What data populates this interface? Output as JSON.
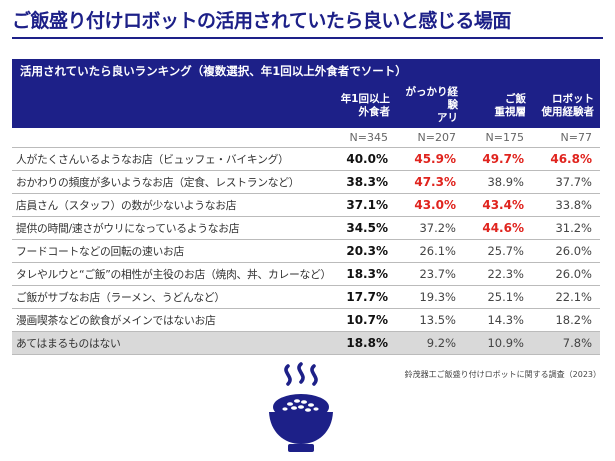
{
  "title": "ご飯盛り付けロボットの活用されていたら良いと感じる場面",
  "subhead": "活用されていたら良いランキング（複数選択、年1回以上外食者でソート）",
  "columns": [
    {
      "label": "年1回以上\n外食者",
      "n": "N=345"
    },
    {
      "label": "がっかり経験\nアリ",
      "n": "N=207"
    },
    {
      "label": "ご飯\n重視層",
      "n": "N=175"
    },
    {
      "label": "ロボット\n使用経験者",
      "n": "N=77"
    }
  ],
  "rows": [
    {
      "label": "人がたくさんいるようなお店（ビュッフェ・バイキング）",
      "values": [
        "40.0%",
        "45.9%",
        "49.7%",
        "46.8%"
      ],
      "highlight": [
        false,
        true,
        true,
        true
      ],
      "shaded": false
    },
    {
      "label": "おかわりの頻度が多いようなお店（定食、レストランなど）",
      "values": [
        "38.3%",
        "47.3%",
        "38.9%",
        "37.7%"
      ],
      "highlight": [
        false,
        true,
        false,
        false
      ],
      "shaded": false
    },
    {
      "label": "店員さん（スタッフ）の数が少ないようなお店",
      "values": [
        "37.1%",
        "43.0%",
        "43.4%",
        "33.8%"
      ],
      "highlight": [
        false,
        true,
        true,
        false
      ],
      "shaded": false
    },
    {
      "label": "提供の時間/速さがウリになっているようなお店",
      "values": [
        "34.5%",
        "37.2%",
        "44.6%",
        "31.2%"
      ],
      "highlight": [
        false,
        false,
        true,
        false
      ],
      "shaded": false
    },
    {
      "label": "フードコートなどの回転の速いお店",
      "values": [
        "20.3%",
        "26.1%",
        "25.7%",
        "26.0%"
      ],
      "highlight": [
        false,
        false,
        false,
        false
      ],
      "shaded": false
    },
    {
      "label": "タレやルウと“ご飯”の相性が主役のお店（焼肉、丼、カレーなど）",
      "values": [
        "18.3%",
        "23.7%",
        "22.3%",
        "26.0%"
      ],
      "highlight": [
        false,
        false,
        false,
        false
      ],
      "shaded": false
    },
    {
      "label": "ご飯がサブなお店（ラーメン、うどんなど）",
      "values": [
        "17.7%",
        "19.3%",
        "25.1%",
        "22.1%"
      ],
      "highlight": [
        false,
        false,
        false,
        false
      ],
      "shaded": false
    },
    {
      "label": "漫画喫茶などの飲食がメインではないお店",
      "values": [
        "10.7%",
        "13.5%",
        "14.3%",
        "18.2%"
      ],
      "highlight": [
        false,
        false,
        false,
        false
      ],
      "shaded": false
    },
    {
      "label": "あてはまるものはない",
      "values": [
        "18.8%",
        "9.2%",
        "10.9%",
        "7.8%"
      ],
      "highlight": [
        false,
        false,
        false,
        false
      ],
      "shaded": true
    }
  ],
  "source": "鈴茂器工ご飯盛り付けロボットに関する調査（2023）",
  "icons": {
    "bowl": "rice-bowl-icon"
  },
  "colors": {
    "navy": "#1d2088",
    "highlight": "#e0241e",
    "shade": "#d9d9d9"
  },
  "chart_data": {
    "type": "table",
    "title": "ご飯盛り付けロボットの活用されていたら良いと感じる場面",
    "subtitle": "活用されていたら良いランキング（複数選択、年1回以上外食者でソート）",
    "categories": [
      "人がたくさんいるようなお店（ビュッフェ・バイキング）",
      "おかわりの頻度が多いようなお店（定食、レストランなど）",
      "店員さん（スタッフ）の数が少ないようなお店",
      "提供の時間/速さがウリになっているようなお店",
      "フードコートなどの回転の速いお店",
      "タレやルウと“ご飯”の相性が主役のお店（焼肉、丼、カレーなど）",
      "ご飯がサブなお店（ラーメン、うどんなど）",
      "漫画喫茶などの飲食がメインではないお店",
      "あてはまるものはない"
    ],
    "series": [
      {
        "name": "年1回以上外食者",
        "n": 345,
        "values": [
          40.0,
          38.3,
          37.1,
          34.5,
          20.3,
          18.3,
          17.7,
          10.7,
          18.8
        ]
      },
      {
        "name": "がっかり経験アリ",
        "n": 207,
        "values": [
          45.9,
          47.3,
          43.0,
          37.2,
          26.1,
          23.7,
          19.3,
          13.5,
          9.2
        ]
      },
      {
        "name": "ご飯重視層",
        "n": 175,
        "values": [
          49.7,
          38.9,
          43.4,
          44.6,
          25.7,
          22.3,
          25.1,
          14.3,
          10.9
        ]
      },
      {
        "name": "ロボット使用経験者",
        "n": 77,
        "values": [
          46.8,
          37.7,
          33.8,
          31.2,
          26.0,
          26.0,
          22.1,
          18.2,
          7.8
        ]
      }
    ],
    "unit": "%"
  }
}
